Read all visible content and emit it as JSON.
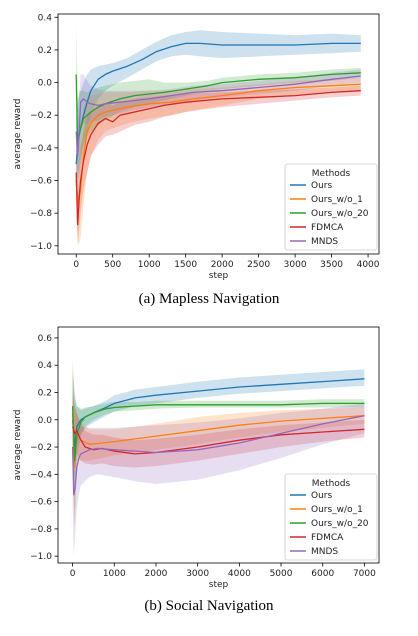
{
  "chart_data": [
    {
      "type": "line",
      "caption": "(a) Mapless Navigation",
      "xlabel": "step",
      "ylabel": "average reward",
      "xlim": [
        -250,
        4150
      ],
      "ylim": [
        -1.05,
        0.42
      ],
      "xticks": [
        0,
        500,
        1000,
        1500,
        2000,
        2500,
        3000,
        3500,
        4000
      ],
      "yticks": [
        -1.0,
        -0.8,
        -0.6,
        -0.4,
        -0.2,
        0.0,
        0.2,
        0.4
      ],
      "legend": {
        "title": "Methods",
        "position": "lower-right"
      },
      "series": [
        {
          "name": "Ours",
          "color": "#1f77b4",
          "x": [
            0,
            30,
            60,
            100,
            150,
            200,
            300,
            400,
            500,
            700,
            900,
            1100,
            1300,
            1500,
            1700,
            2000,
            2500,
            3000,
            3500,
            3900
          ],
          "y": [
            -0.5,
            -0.35,
            -0.28,
            -0.2,
            -0.12,
            -0.05,
            0.02,
            0.05,
            0.07,
            0.1,
            0.14,
            0.19,
            0.22,
            0.24,
            0.24,
            0.23,
            0.23,
            0.23,
            0.24,
            0.24
          ],
          "lo": [
            -0.75,
            -0.6,
            -0.5,
            -0.4,
            -0.3,
            -0.2,
            -0.1,
            -0.05,
            -0.02,
            0.03,
            0.08,
            0.13,
            0.16,
            0.17,
            0.16,
            0.15,
            0.16,
            0.17,
            0.18,
            0.19
          ],
          "hi": [
            -0.2,
            -0.1,
            -0.05,
            0.0,
            0.05,
            0.08,
            0.1,
            0.11,
            0.12,
            0.15,
            0.2,
            0.25,
            0.29,
            0.31,
            0.32,
            0.31,
            0.3,
            0.29,
            0.3,
            0.29
          ]
        },
        {
          "name": "Ours_w/o_1",
          "color": "#ff7f0e",
          "x": [
            0,
            30,
            60,
            100,
            150,
            200,
            300,
            400,
            500,
            700,
            1000,
            1300,
            1600,
            2000,
            2500,
            3000,
            3500,
            3900
          ],
          "y": [
            -0.6,
            -0.75,
            -0.65,
            -0.45,
            -0.3,
            -0.25,
            -0.2,
            -0.18,
            -0.17,
            -0.15,
            -0.13,
            -0.12,
            -0.1,
            -0.08,
            -0.05,
            -0.03,
            -0.02,
            -0.01
          ],
          "lo": [
            -0.85,
            -1.0,
            -0.95,
            -0.75,
            -0.55,
            -0.45,
            -0.35,
            -0.3,
            -0.28,
            -0.25,
            -0.22,
            -0.2,
            -0.17,
            -0.14,
            -0.1,
            -0.08,
            -0.06,
            -0.05
          ],
          "hi": [
            -0.3,
            -0.5,
            -0.35,
            -0.15,
            -0.1,
            -0.08,
            -0.07,
            -0.06,
            -0.06,
            -0.06,
            -0.05,
            -0.05,
            -0.04,
            -0.03,
            -0.01,
            0.01,
            0.02,
            0.03
          ]
        },
        {
          "name": "Ours_w/o_20",
          "color": "#2ca02c",
          "x": [
            0,
            20,
            40,
            60,
            100,
            150,
            200,
            300,
            400,
            600,
            800,
            1000,
            1200,
            1500,
            1800,
            2000,
            2500,
            3000,
            3500,
            3900
          ],
          "y": [
            0.05,
            -0.38,
            -0.3,
            -0.28,
            -0.22,
            -0.2,
            -0.18,
            -0.15,
            -0.13,
            -0.1,
            -0.08,
            -0.07,
            -0.06,
            -0.04,
            -0.02,
            0.0,
            0.02,
            0.03,
            0.05,
            0.06
          ],
          "lo": [
            -0.3,
            -0.6,
            -0.5,
            -0.45,
            -0.38,
            -0.33,
            -0.3,
            -0.26,
            -0.23,
            -0.18,
            -0.15,
            -0.13,
            -0.11,
            -0.08,
            -0.06,
            -0.04,
            -0.02,
            0.0,
            0.01,
            0.03
          ],
          "hi": [
            0.35,
            -0.1,
            -0.05,
            -0.05,
            -0.05,
            -0.06,
            -0.05,
            -0.03,
            -0.02,
            0.0,
            0.01,
            0.02,
            0.0,
            0.0,
            0.01,
            0.03,
            0.05,
            0.06,
            0.08,
            0.09
          ]
        },
        {
          "name": "FDMCA",
          "color": "#d62728",
          "x": [
            0,
            20,
            40,
            60,
            100,
            150,
            200,
            300,
            400,
            500,
            600,
            800,
            1000,
            1200,
            1500,
            2000,
            2500,
            3000,
            3500,
            3900
          ],
          "y": [
            -0.55,
            -0.87,
            -0.7,
            -0.6,
            -0.48,
            -0.38,
            -0.32,
            -0.25,
            -0.22,
            -0.24,
            -0.2,
            -0.18,
            -0.16,
            -0.14,
            -0.12,
            -0.1,
            -0.09,
            -0.08,
            -0.06,
            -0.05
          ],
          "lo": [
            -0.7,
            -1.0,
            -0.9,
            -0.8,
            -0.65,
            -0.55,
            -0.45,
            -0.38,
            -0.33,
            -0.32,
            -0.3,
            -0.26,
            -0.24,
            -0.21,
            -0.18,
            -0.15,
            -0.13,
            -0.11,
            -0.09,
            -0.08
          ],
          "hi": [
            -0.4,
            -0.7,
            -0.5,
            -0.4,
            -0.3,
            -0.2,
            -0.18,
            -0.15,
            -0.12,
            -0.14,
            -0.12,
            -0.1,
            -0.09,
            -0.08,
            -0.07,
            -0.06,
            -0.05,
            -0.04,
            -0.03,
            -0.02
          ]
        },
        {
          "name": "MNDS",
          "color": "#9467bd",
          "x": [
            0,
            20,
            40,
            60,
            100,
            150,
            200,
            300,
            400,
            600,
            800,
            1000,
            1300,
            1600,
            2000,
            2500,
            3000,
            3500,
            3900
          ],
          "y": [
            -0.3,
            -0.45,
            -0.3,
            -0.12,
            -0.1,
            -0.12,
            -0.13,
            -0.14,
            -0.13,
            -0.12,
            -0.11,
            -0.1,
            -0.08,
            -0.06,
            -0.05,
            -0.03,
            -0.01,
            0.02,
            0.04
          ],
          "lo": [
            -0.5,
            -0.65,
            -0.5,
            -0.3,
            -0.25,
            -0.25,
            -0.24,
            -0.23,
            -0.21,
            -0.19,
            -0.17,
            -0.15,
            -0.13,
            -0.11,
            -0.09,
            -0.07,
            -0.05,
            -0.02,
            0.0
          ],
          "hi": [
            -0.1,
            -0.25,
            -0.1,
            0.05,
            0.05,
            0.01,
            -0.02,
            -0.04,
            -0.05,
            -0.05,
            -0.05,
            -0.05,
            -0.04,
            -0.02,
            -0.01,
            0.01,
            0.03,
            0.06,
            0.08
          ]
        }
      ]
    },
    {
      "type": "line",
      "caption": "(b) Social Navigation",
      "xlabel": "step",
      "ylabel": "average reward",
      "xlim": [
        -350,
        7350
      ],
      "ylim": [
        -1.05,
        0.68
      ],
      "xticks": [
        0,
        1000,
        2000,
        3000,
        4000,
        5000,
        6000,
        7000
      ],
      "yticks": [
        -1.0,
        -0.8,
        -0.6,
        -0.4,
        -0.2,
        0.0,
        0.2,
        0.4,
        0.6
      ],
      "legend": {
        "title": "Methods",
        "position": "lower-right"
      },
      "series": [
        {
          "name": "Ours",
          "color": "#1f77b4",
          "x": [
            0,
            50,
            100,
            200,
            300,
            500,
            800,
            1000,
            1500,
            2000,
            3000,
            4000,
            5000,
            6000,
            7000
          ],
          "y": [
            0.0,
            -0.2,
            -0.05,
            0.0,
            0.02,
            0.05,
            0.09,
            0.12,
            0.16,
            0.18,
            0.21,
            0.24,
            0.26,
            0.28,
            0.3
          ],
          "lo": [
            -0.3,
            -0.45,
            -0.2,
            -0.1,
            -0.06,
            -0.02,
            0.03,
            0.06,
            0.1,
            0.12,
            0.16,
            0.19,
            0.21,
            0.23,
            0.25
          ],
          "hi": [
            0.35,
            0.2,
            0.1,
            0.07,
            0.08,
            0.1,
            0.14,
            0.18,
            0.22,
            0.24,
            0.28,
            0.31,
            0.33,
            0.35,
            0.37
          ]
        },
        {
          "name": "Ours_w/o_1",
          "color": "#ff7f0e",
          "x": [
            0,
            50,
            100,
            200,
            400,
            700,
            1000,
            1500,
            2000,
            3000,
            4000,
            5000,
            6000,
            7000
          ],
          "y": [
            0.05,
            -0.35,
            -0.1,
            -0.15,
            -0.18,
            -0.17,
            -0.16,
            -0.14,
            -0.12,
            -0.08,
            -0.04,
            -0.01,
            0.01,
            0.03
          ],
          "lo": [
            -0.4,
            -0.8,
            -0.3,
            -0.3,
            -0.3,
            -0.28,
            -0.26,
            -0.24,
            -0.22,
            -0.18,
            -0.13,
            -0.09,
            -0.06,
            -0.03
          ],
          "hi": [
            0.4,
            0.1,
            0.05,
            -0.02,
            -0.07,
            -0.07,
            -0.07,
            -0.05,
            -0.03,
            0.02,
            0.05,
            0.07,
            0.08,
            0.09
          ]
        },
        {
          "name": "Ours_w/o_20",
          "color": "#2ca02c",
          "x": [
            0,
            50,
            100,
            200,
            300,
            500,
            800,
            1000,
            1500,
            2000,
            3000,
            4000,
            5000,
            6000,
            7000
          ],
          "y": [
            0.1,
            -0.3,
            -0.1,
            -0.02,
            0.02,
            0.05,
            0.08,
            0.09,
            0.1,
            0.11,
            0.11,
            0.11,
            0.11,
            0.12,
            0.12
          ],
          "lo": [
            -0.3,
            -0.75,
            -0.3,
            -0.12,
            -0.05,
            0.0,
            0.04,
            0.06,
            0.07,
            0.08,
            0.09,
            0.09,
            0.09,
            0.09,
            0.09
          ],
          "hi": [
            0.45,
            0.15,
            0.1,
            0.08,
            0.09,
            0.1,
            0.12,
            0.13,
            0.13,
            0.14,
            0.14,
            0.14,
            0.14,
            0.15,
            0.15
          ]
        },
        {
          "name": "FDMCA",
          "color": "#d62728",
          "x": [
            0,
            50,
            100,
            200,
            300,
            500,
            700,
            1000,
            1500,
            2000,
            3000,
            4000,
            5000,
            6000,
            7000
          ],
          "y": [
            -0.05,
            -0.1,
            -0.08,
            -0.15,
            -0.2,
            -0.22,
            -0.21,
            -0.23,
            -0.25,
            -0.24,
            -0.2,
            -0.15,
            -0.11,
            -0.09,
            -0.07
          ],
          "lo": [
            -0.35,
            -0.3,
            -0.25,
            -0.3,
            -0.32,
            -0.33,
            -0.32,
            -0.34,
            -0.35,
            -0.34,
            -0.3,
            -0.25,
            -0.2,
            -0.16,
            -0.13
          ],
          "hi": [
            0.2,
            0.1,
            0.05,
            -0.03,
            -0.08,
            -0.11,
            -0.11,
            -0.13,
            -0.15,
            -0.14,
            -0.11,
            -0.07,
            -0.04,
            -0.02,
            0.0
          ]
        },
        {
          "name": "MNDS",
          "color": "#9467bd",
          "x": [
            0,
            30,
            60,
            100,
            150,
            200,
            400,
            600,
            1000,
            1500,
            2000,
            3000,
            4000,
            5000,
            6000,
            7000
          ],
          "y": [
            -0.2,
            -0.55,
            -0.5,
            -0.35,
            -0.28,
            -0.25,
            -0.22,
            -0.21,
            -0.22,
            -0.23,
            -0.24,
            -0.22,
            -0.17,
            -0.1,
            -0.03,
            0.03
          ],
          "lo": [
            -0.6,
            -1.0,
            -0.85,
            -0.65,
            -0.55,
            -0.48,
            -0.42,
            -0.4,
            -0.42,
            -0.45,
            -0.47,
            -0.44,
            -0.37,
            -0.28,
            -0.18,
            -0.1
          ],
          "hi": [
            0.25,
            -0.1,
            -0.15,
            -0.1,
            -0.05,
            -0.05,
            -0.06,
            -0.06,
            -0.06,
            -0.05,
            -0.04,
            -0.02,
            0.01,
            0.05,
            0.08,
            0.12
          ]
        }
      ]
    }
  ]
}
